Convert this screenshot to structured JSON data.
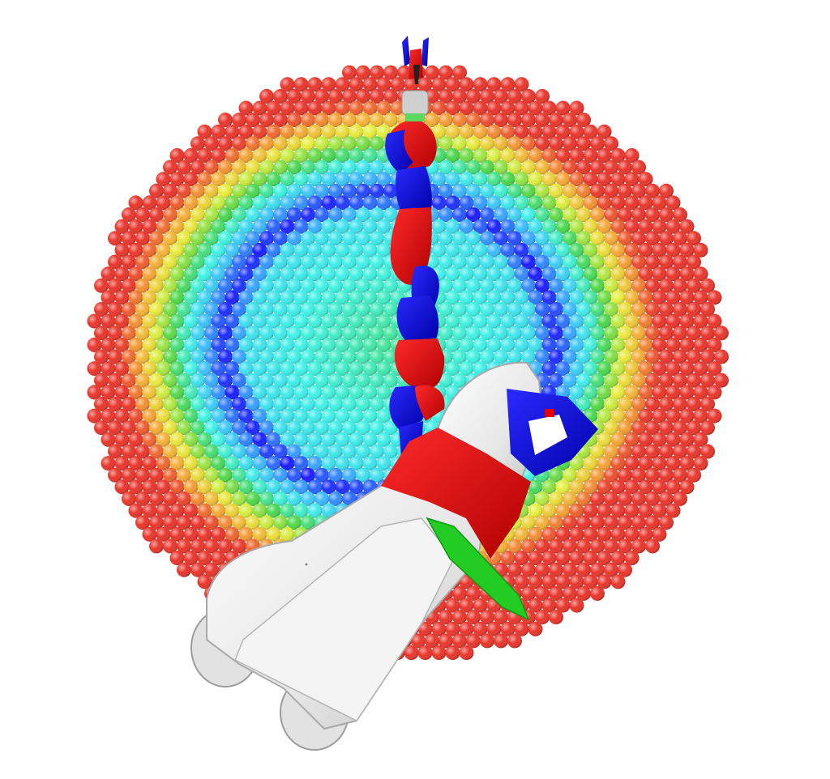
{
  "scene": {
    "background": "#ffffff",
    "subjects": [
      "reachability-map",
      "robot-arm",
      "mobile-base"
    ],
    "reachability_map": {
      "style": "spheres",
      "colormap_low_to_high": [
        "#1a1aff",
        "#3bb6ff",
        "#3ef2e6",
        "#49d64a",
        "#e6f03a",
        "#f5a534",
        "#e9352b"
      ]
    },
    "robot": {
      "arm_colors": [
        "#e00000",
        "#0000e6"
      ],
      "base_color": "#ededed",
      "base_accent_color": "#e00000",
      "wheel_count": 2,
      "gripper_colors": [
        "#0000e6",
        "#e00000"
      ],
      "marker_color": "#22cc22"
    }
  }
}
